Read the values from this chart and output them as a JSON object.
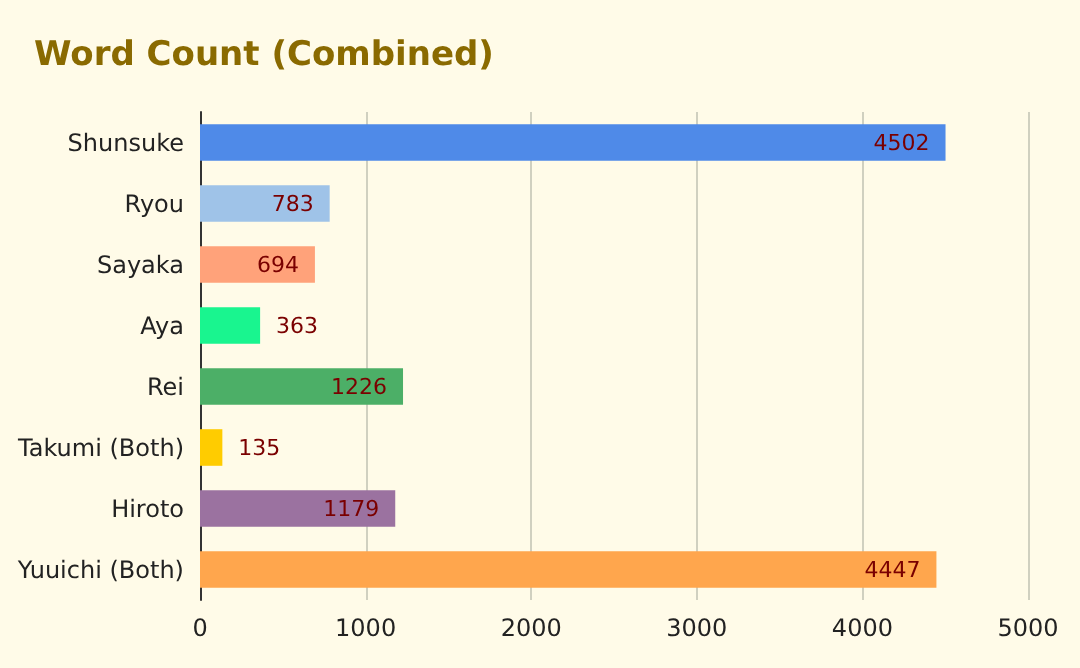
{
  "chart_data": {
    "type": "bar",
    "orientation": "horizontal",
    "title": "Word Count (Combined)",
    "categories": [
      "Shunsuke",
      "Ryou",
      "Sayaka",
      "Aya",
      "Rei",
      "Takumi (Both)",
      "Hiroto",
      "Yuuichi (Both)"
    ],
    "values": [
      4502,
      783,
      694,
      363,
      1226,
      135,
      1179,
      4447
    ],
    "colors": [
      "#4f8ae8",
      "#9fc3e8",
      "#ffa27a",
      "#19f58f",
      "#4caf67",
      "#ffcc00",
      "#9b72a0",
      "#ffa64d"
    ],
    "data_labels": true,
    "xlim": [
      0,
      5000
    ],
    "xticks": [
      0,
      1000,
      2000,
      3000,
      4000,
      5000
    ],
    "grid": "x"
  }
}
